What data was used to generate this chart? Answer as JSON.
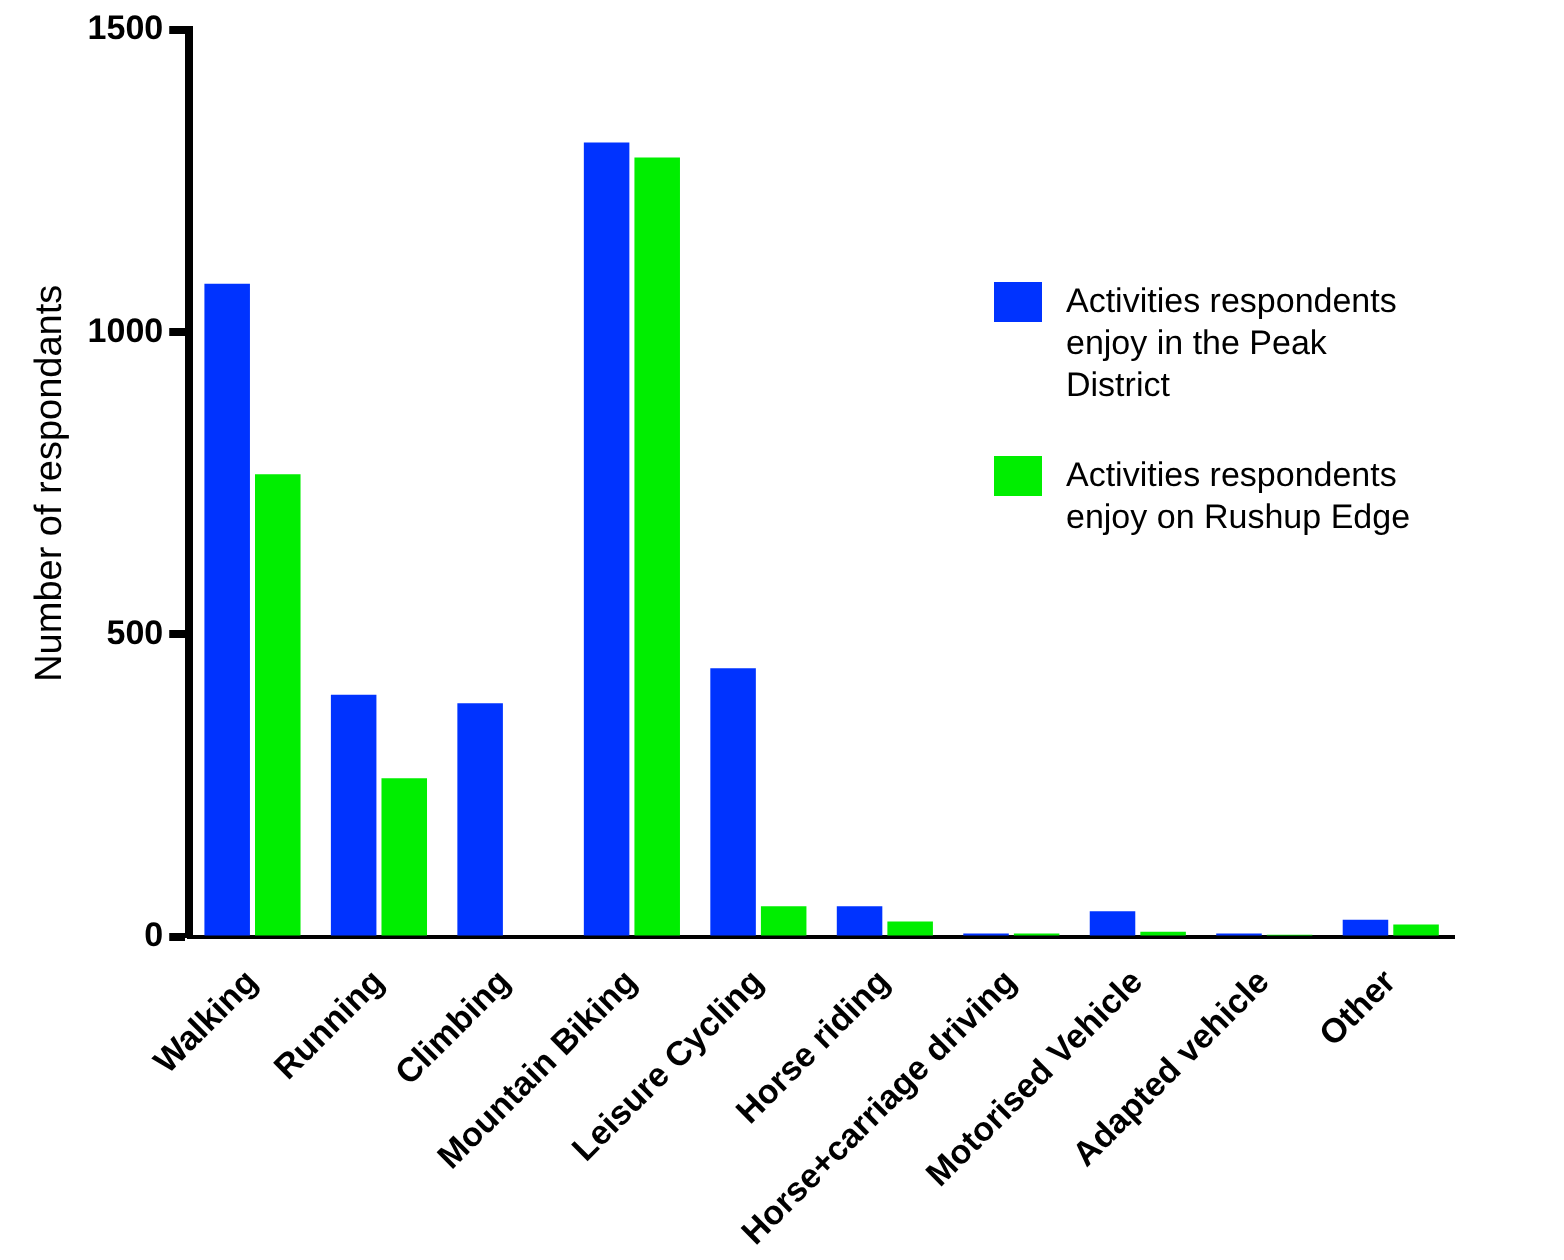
{
  "chart_data": {
    "type": "bar",
    "ylabel": "Number of respondants",
    "categories": [
      "Walking",
      "Running",
      "Climbing",
      "Mountain Biking",
      "Leisure Cycling",
      "Horse riding",
      "Horse+carriage driving",
      "Motorised Vehicle",
      "Adapted vehicle",
      "Other"
    ],
    "series": [
      {
        "name": "Activities respondents enjoy in the Peak District",
        "color": "#0033ff",
        "values": [
          1080,
          400,
          386,
          1314,
          444,
          50,
          5,
          42,
          5,
          28
        ]
      },
      {
        "name": "Activities respondents enjoy on Rushup Edge",
        "color": "#00ee00",
        "values": [
          765,
          262,
          0,
          1289,
          50,
          25,
          5,
          8,
          3,
          20
        ]
      }
    ],
    "ylim": [
      0,
      1500
    ],
    "yticks": [
      0,
      500,
      1000,
      1500
    ],
    "grid": false,
    "legend": "right"
  }
}
